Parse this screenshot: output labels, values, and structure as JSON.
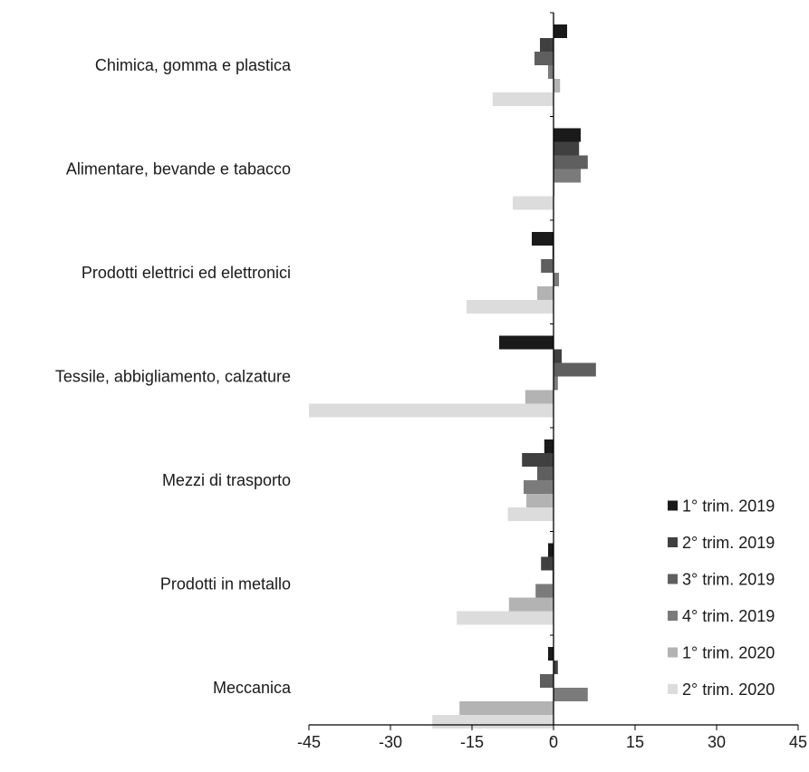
{
  "chart_data": {
    "type": "bar",
    "orientation": "horizontal",
    "categories": [
      "Chimica, gomma e plastica",
      "Alimentare, bevande e tabacco",
      "Prodotti elettrici ed elettronici",
      "Tessile, abbigliamento, calzature",
      "Mezzi di trasporto",
      "Prodotti in metallo",
      "Meccanica"
    ],
    "series": [
      {
        "name": "1° trim. 2019",
        "color": "#1a1a1a",
        "values": [
          2.5,
          5.0,
          -4.0,
          -10.0,
          -1.7,
          -1.0,
          -1.0
        ]
      },
      {
        "name": "2° trim. 2019",
        "color": "#404040",
        "values": [
          -2.5,
          4.7,
          -0.2,
          1.5,
          -5.8,
          -2.3,
          0.8
        ]
      },
      {
        "name": "3° trim. 2019",
        "color": "#5f5f5f",
        "values": [
          -3.5,
          6.3,
          -2.3,
          7.8,
          -3.0,
          -0.2,
          -2.5
        ]
      },
      {
        "name": "4° trim. 2019",
        "color": "#7b7b7b",
        "values": [
          -1.0,
          5.0,
          1.0,
          0.8,
          -5.5,
          -3.3,
          6.3
        ]
      },
      {
        "name": "1° trim. 2020",
        "color": "#b3b3b3",
        "values": [
          1.2,
          0.2,
          -3.0,
          -5.2,
          -5.0,
          -8.2,
          -17.3
        ]
      },
      {
        "name": "2° trim. 2020",
        "color": "#dcdcdc",
        "values": [
          -11.2,
          -7.5,
          -16.0,
          -45.0,
          -8.4,
          -17.8,
          -22.3
        ]
      }
    ],
    "xlim": [
      -45,
      45
    ],
    "xticks": [
      "-45",
      "-30",
      "-15",
      "0",
      "15",
      "30",
      "45"
    ],
    "legend_position": "bottom-right",
    "title": "",
    "xlabel": "",
    "ylabel": ""
  }
}
